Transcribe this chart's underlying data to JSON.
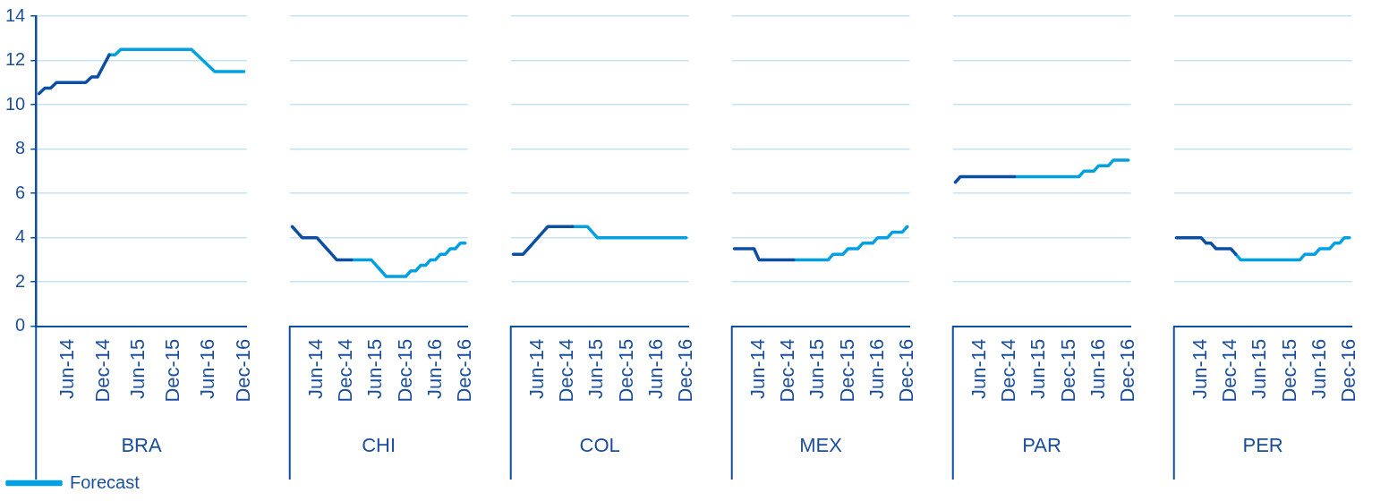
{
  "chart_data": [
    {
      "type": "line",
      "xlabel": "BRA",
      "categories": [
        null,
        null,
        null,
        null,
        null,
        "Jun-14",
        null,
        null,
        null,
        null,
        null,
        "Dec-14",
        null,
        null,
        null,
        null,
        null,
        "Jun-15",
        null,
        null,
        null,
        null,
        null,
        "Dec-15",
        null,
        null,
        null,
        null,
        null,
        "Jun-16",
        null,
        null,
        null,
        null,
        null,
        "Dec-16"
      ],
      "ylim": [
        0,
        14
      ],
      "yticks": [
        0,
        2,
        4,
        6,
        8,
        10,
        12,
        14
      ],
      "grid": "y",
      "legend": "bottom left",
      "series": [
        {
          "color": "#0b4ea2",
          "values": [
            10.5,
            10.75,
            10.75,
            11,
            11,
            11,
            11,
            11,
            11,
            11.25,
            11.25,
            11.75,
            12.25,
            null,
            null,
            null,
            null,
            null,
            null,
            null,
            null,
            null,
            null,
            null,
            null,
            null,
            null,
            null,
            null,
            null,
            null,
            null,
            null,
            null,
            null,
            null
          ]
        },
        {
          "name": "Forecast",
          "color": "#00a0e3",
          "values": [
            null,
            null,
            null,
            null,
            null,
            null,
            null,
            null,
            null,
            null,
            null,
            null,
            12.25,
            12.25,
            12.5,
            12.5,
            12.5,
            12.5,
            12.5,
            12.5,
            12.5,
            12.5,
            12.5,
            12.5,
            12.5,
            12.5,
            12.5,
            12.25,
            12,
            11.75,
            11.5,
            11.5,
            11.5,
            11.5,
            11.5,
            11.5
          ]
        }
      ]
    },
    {
      "type": "line",
      "xlabel": "CHI",
      "categories": [
        null,
        null,
        null,
        null,
        null,
        "Jun-14",
        null,
        null,
        null,
        null,
        null,
        "Dec-14",
        null,
        null,
        null,
        null,
        null,
        "Jun-15",
        null,
        null,
        null,
        null,
        null,
        "Dec-15",
        null,
        null,
        null,
        null,
        null,
        "Jun-16",
        null,
        null,
        null,
        null,
        null,
        "Dec-16"
      ],
      "ylim": [
        0,
        14
      ],
      "yticks": [
        0,
        2,
        4,
        6,
        8,
        10,
        12,
        14
      ],
      "grid": "y",
      "tick_labels": "x",
      "series": [
        {
          "color": "#0b4ea2",
          "values": [
            4.5,
            4.25,
            4,
            4,
            4,
            4,
            3.75,
            3.5,
            3.25,
            3,
            3,
            3,
            3,
            null,
            null,
            null,
            null,
            null,
            null,
            null,
            null,
            null,
            null,
            null,
            null,
            null,
            null,
            null,
            null,
            null,
            null,
            null,
            null,
            null,
            null,
            null
          ]
        },
        {
          "color": "#00a0e3",
          "values": [
            null,
            null,
            null,
            null,
            null,
            null,
            null,
            null,
            null,
            null,
            null,
            null,
            3,
            3,
            3,
            3,
            3,
            2.75,
            2.5,
            2.25,
            2.25,
            2.25,
            2.25,
            2.25,
            2.5,
            2.5,
            2.75,
            2.75,
            3,
            3,
            3.25,
            3.25,
            3.5,
            3.5,
            3.75,
            3.75
          ]
        }
      ]
    },
    {
      "type": "line",
      "xlabel": "COL",
      "categories": [
        null,
        null,
        null,
        null,
        null,
        "Jun-14",
        null,
        null,
        null,
        null,
        null,
        "Dec-14",
        null,
        null,
        null,
        null,
        null,
        "Jun-15",
        null,
        null,
        null,
        null,
        null,
        "Dec-15",
        null,
        null,
        null,
        null,
        null,
        "Jun-16",
        null,
        null,
        null,
        null,
        null,
        "Dec-16"
      ],
      "ylim": [
        0,
        14
      ],
      "yticks": [
        0,
        2,
        4,
        6,
        8,
        10,
        12,
        14
      ],
      "grid": "y",
      "tick_labels": "x",
      "series": [
        {
          "color": "#0b4ea2",
          "values": [
            3.25,
            3.25,
            3.25,
            3.5,
            3.75,
            4,
            4.25,
            4.5,
            4.5,
            4.5,
            4.5,
            4.5,
            4.5,
            null,
            null,
            null,
            null,
            null,
            null,
            null,
            null,
            null,
            null,
            null,
            null,
            null,
            null,
            null,
            null,
            null,
            null,
            null,
            null,
            null,
            null,
            null
          ]
        },
        {
          "color": "#00a0e3",
          "values": [
            null,
            null,
            null,
            null,
            null,
            null,
            null,
            null,
            null,
            null,
            null,
            null,
            4.5,
            4.5,
            4.5,
            4.5,
            4.25,
            4,
            4,
            4,
            4,
            4,
            4,
            4,
            4,
            4,
            4,
            4,
            4,
            4,
            4,
            4,
            4,
            4,
            4,
            4
          ]
        }
      ]
    },
    {
      "type": "line",
      "xlabel": "MEX",
      "categories": [
        null,
        null,
        null,
        null,
        null,
        "Jun-14",
        null,
        null,
        null,
        null,
        null,
        "Dec-14",
        null,
        null,
        null,
        null,
        null,
        "Jun-15",
        null,
        null,
        null,
        null,
        null,
        "Dec-15",
        null,
        null,
        null,
        null,
        null,
        "Jun-16",
        null,
        null,
        null,
        null,
        null,
        "Dec-16"
      ],
      "ylim": [
        0,
        14
      ],
      "yticks": [
        0,
        2,
        4,
        6,
        8,
        10,
        12,
        14
      ],
      "grid": "y",
      "tick_labels": "x",
      "series": [
        {
          "color": "#0b4ea2",
          "values": [
            3.5,
            3.5,
            3.5,
            3.5,
            3.5,
            3,
            3,
            3,
            3,
            3,
            3,
            3,
            3,
            null,
            null,
            null,
            null,
            null,
            null,
            null,
            null,
            null,
            null,
            null,
            null,
            null,
            null,
            null,
            null,
            null,
            null,
            null,
            null,
            null,
            null,
            null
          ]
        },
        {
          "color": "#00a0e3",
          "values": [
            null,
            null,
            null,
            null,
            null,
            null,
            null,
            null,
            null,
            null,
            null,
            null,
            3,
            3,
            3,
            3,
            3,
            3,
            3,
            3,
            3.25,
            3.25,
            3.25,
            3.5,
            3.5,
            3.5,
            3.75,
            3.75,
            3.75,
            4,
            4,
            4,
            4.25,
            4.25,
            4.25,
            4.5
          ]
        }
      ]
    },
    {
      "type": "line",
      "xlabel": "PAR",
      "categories": [
        null,
        null,
        null,
        null,
        null,
        "Jun-14",
        null,
        null,
        null,
        null,
        null,
        "Dec-14",
        null,
        null,
        null,
        null,
        null,
        "Jun-15",
        null,
        null,
        null,
        null,
        null,
        "Dec-15",
        null,
        null,
        null,
        null,
        null,
        "Jun-16",
        null,
        null,
        null,
        null,
        null,
        "Dec-16"
      ],
      "ylim": [
        0,
        14
      ],
      "yticks": [
        0,
        2,
        4,
        6,
        8,
        10,
        12,
        14
      ],
      "grid": "y",
      "tick_labels": "x",
      "series": [
        {
          "color": "#0b4ea2",
          "values": [
            6.5,
            6.75,
            6.75,
            6.75,
            6.75,
            6.75,
            6.75,
            6.75,
            6.75,
            6.75,
            6.75,
            6.75,
            6.75,
            null,
            null,
            null,
            null,
            null,
            null,
            null,
            null,
            null,
            null,
            null,
            null,
            null,
            null,
            null,
            null,
            null,
            null,
            null,
            null,
            null,
            null,
            null
          ]
        },
        {
          "color": "#00a0e3",
          "values": [
            null,
            null,
            null,
            null,
            null,
            null,
            null,
            null,
            null,
            null,
            null,
            null,
            6.75,
            6.75,
            6.75,
            6.75,
            6.75,
            6.75,
            6.75,
            6.75,
            6.75,
            6.75,
            6.75,
            6.75,
            6.75,
            6.75,
            7,
            7,
            7,
            7.25,
            7.25,
            7.25,
            7.5,
            7.5,
            7.5,
            7.5
          ]
        }
      ]
    },
    {
      "type": "line",
      "xlabel": "PER",
      "categories": [
        null,
        null,
        null,
        null,
        null,
        "Jun-14",
        null,
        null,
        null,
        null,
        null,
        "Dec-14",
        null,
        null,
        null,
        null,
        null,
        "Jun-15",
        null,
        null,
        null,
        null,
        null,
        "Dec-15",
        null,
        null,
        null,
        null,
        null,
        "Jun-16",
        null,
        null,
        null,
        null,
        null,
        "Dec-16"
      ],
      "ylim": [
        0,
        14
      ],
      "yticks": [
        0,
        2,
        4,
        6,
        8,
        10,
        12,
        14
      ],
      "grid": "y",
      "tick_labels": "x",
      "series": [
        {
          "color": "#0b4ea2",
          "values": [
            4,
            4,
            4,
            4,
            4,
            4,
            3.75,
            3.75,
            3.5,
            3.5,
            3.5,
            3.5,
            3.25,
            null,
            null,
            null,
            null,
            null,
            null,
            null,
            null,
            null,
            null,
            null,
            null,
            null,
            null,
            null,
            null,
            null,
            null,
            null,
            null,
            null,
            null,
            null
          ]
        },
        {
          "color": "#00a0e3",
          "values": [
            null,
            null,
            null,
            null,
            null,
            null,
            null,
            null,
            null,
            null,
            null,
            null,
            3.25,
            3,
            3,
            3,
            3,
            3,
            3,
            3,
            3,
            3,
            3,
            3,
            3,
            3,
            3.25,
            3.25,
            3.25,
            3.5,
            3.5,
            3.5,
            3.75,
            3.75,
            4,
            4
          ]
        }
      ]
    }
  ]
}
